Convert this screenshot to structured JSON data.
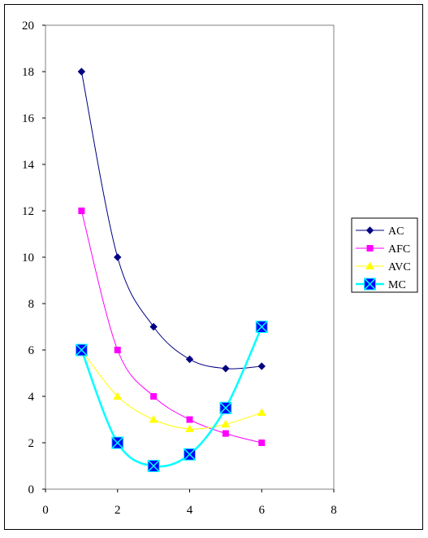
{
  "chart_data": {
    "type": "line",
    "title": "",
    "xlabel": "",
    "ylabel": "",
    "xlim": [
      0,
      8
    ],
    "ylim": [
      0,
      20
    ],
    "x_ticks": [
      "0",
      "2",
      "4",
      "6",
      "8"
    ],
    "y_ticks": [
      "0",
      "2",
      "4",
      "6",
      "8",
      "10",
      "12",
      "14",
      "16",
      "18",
      "20"
    ],
    "grid": false,
    "legend_position": "right",
    "x": [
      1,
      2,
      3,
      4,
      5,
      6
    ],
    "series": [
      {
        "name": "AC",
        "values": [
          18,
          10,
          7,
          5.6,
          5.2,
          5.3
        ],
        "color": "#000080",
        "marker": "diamond"
      },
      {
        "name": "AFC",
        "values": [
          12,
          6,
          4,
          3,
          2.4,
          2
        ],
        "color": "#ff00ff",
        "marker": "square"
      },
      {
        "name": "AVC",
        "values": [
          6,
          4,
          3,
          2.6,
          2.8,
          3.3
        ],
        "color": "#ffff00",
        "marker": "triangle"
      },
      {
        "name": "MC",
        "values": [
          6,
          2,
          1,
          1.5,
          3.5,
          7
        ],
        "color": "#00ffff",
        "marker": "box-x",
        "marker_fill": "#0000ff"
      }
    ]
  }
}
